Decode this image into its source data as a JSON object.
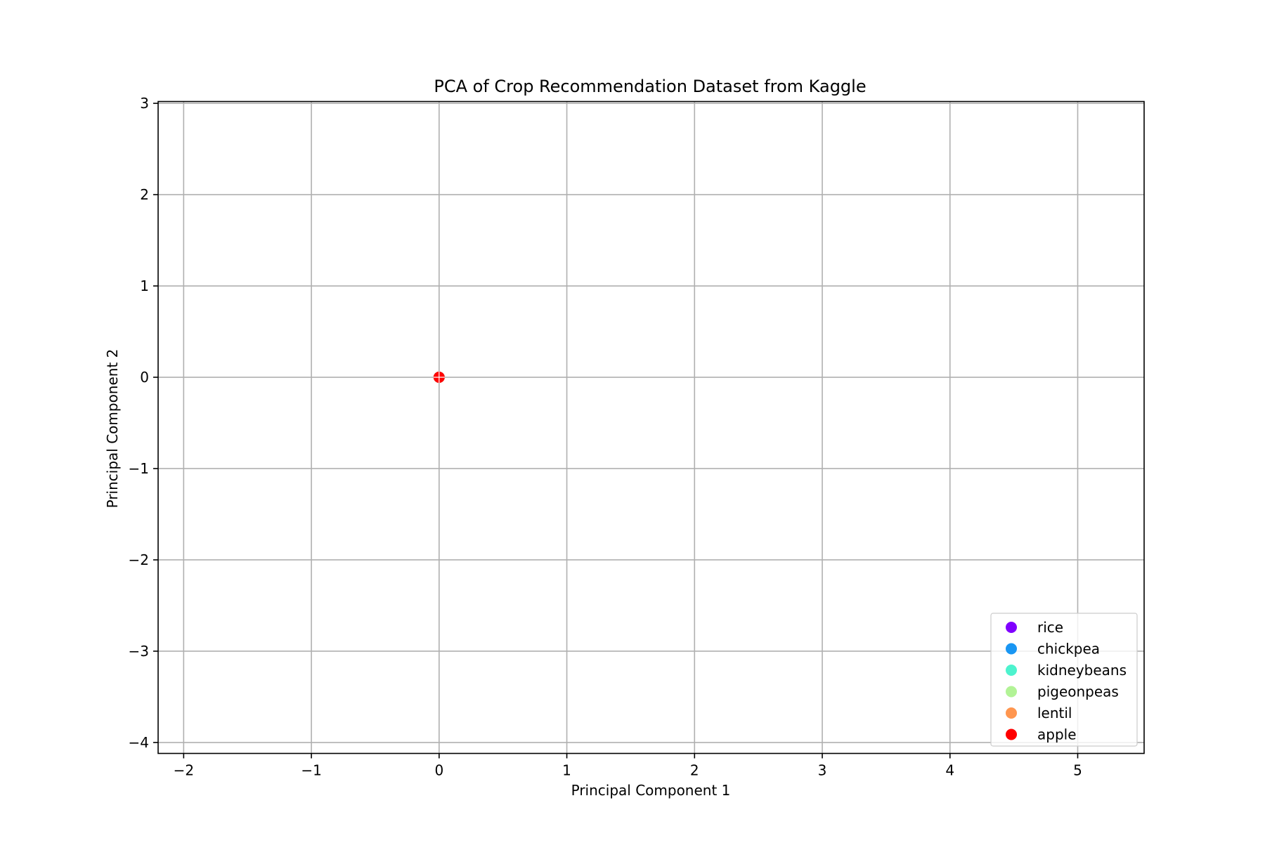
{
  "chart_data": {
    "type": "scatter",
    "title": "PCA of Crop Recommendation Dataset from Kaggle",
    "xlabel": "Principal Component 1",
    "ylabel": "Principal Component 2",
    "xlim": [
      -2.2,
      5.52
    ],
    "ylim": [
      -4.12,
      3.02
    ],
    "xticks": [
      -2,
      -1,
      0,
      1,
      2,
      3,
      4,
      5
    ],
    "xtick_labels": [
      "−2",
      "−1",
      "0",
      "1",
      "2",
      "3",
      "4",
      "5"
    ],
    "yticks": [
      -4,
      -3,
      -2,
      -1,
      0,
      1,
      2,
      3
    ],
    "ytick_labels": [
      "−4",
      "−3",
      "−2",
      "−1",
      "0",
      "1",
      "2",
      "3"
    ],
    "grid": true,
    "legend_position": "lower right",
    "series": [
      {
        "name": "rice",
        "color": "#8000ff",
        "points": [
          [
            0,
            0
          ]
        ]
      },
      {
        "name": "chickpea",
        "color": "#1996f3",
        "points": [
          [
            0,
            0
          ]
        ]
      },
      {
        "name": "kidneybeans",
        "color": "#4df3ce",
        "points": [
          [
            0,
            0
          ]
        ]
      },
      {
        "name": "pigeonpeas",
        "color": "#b2f396",
        "points": [
          [
            0,
            0
          ]
        ]
      },
      {
        "name": "lentil",
        "color": "#ff964f",
        "points": [
          [
            0,
            0
          ]
        ]
      },
      {
        "name": "apple",
        "color": "#ff0000",
        "points": [
          [
            0,
            0
          ]
        ]
      }
    ]
  }
}
